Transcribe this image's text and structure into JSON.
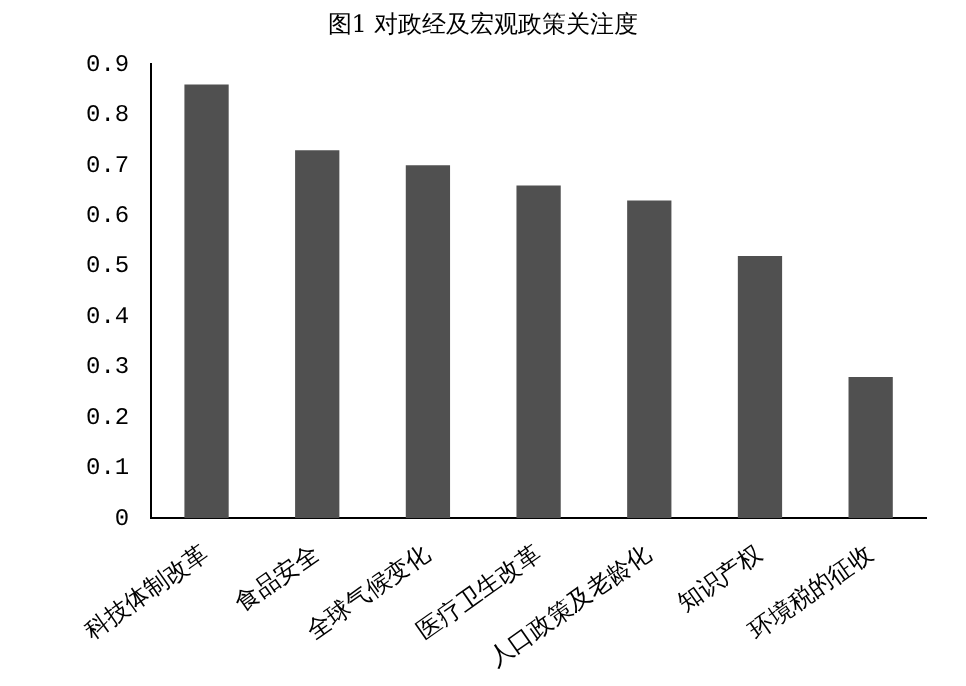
{
  "chart_data": {
    "type": "bar",
    "title": "图1 对政经及宏观政策关注度",
    "categories": [
      "科技体制改革",
      "食品安全",
      "全球气候变化",
      "医疗卫生改革",
      "人口政策及老龄化",
      "知识产权",
      "环境税的征收"
    ],
    "values": [
      0.86,
      0.73,
      0.7,
      0.66,
      0.63,
      0.52,
      0.28
    ],
    "color": "#505050",
    "ylim": [
      0,
      0.9
    ],
    "yticks": [
      0,
      0.1,
      0.2,
      0.3,
      0.4,
      0.5,
      0.6,
      0.7,
      0.8,
      0.9
    ],
    "grid": false
  }
}
